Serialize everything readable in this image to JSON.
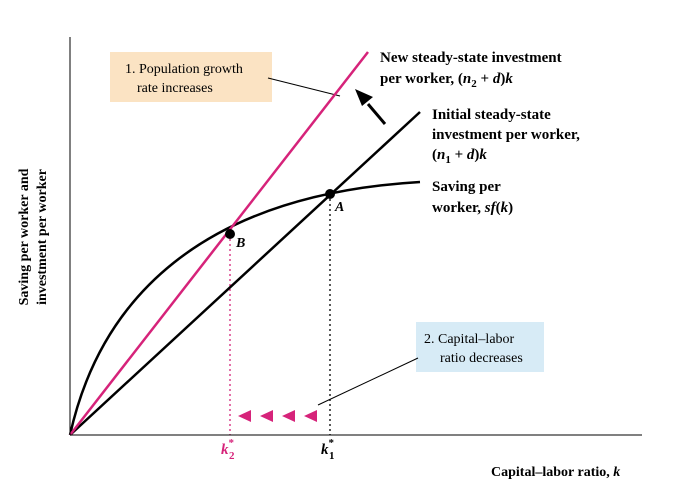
{
  "axes": {
    "y_label_line1": "Saving per worker and",
    "y_label_line2": "investment per worker",
    "x_label": "Capital–labor ratio, ",
    "x_label_var": "k"
  },
  "curves": {
    "new_investment": {
      "line1": "New steady-state investment",
      "line2_prefix": "per worker, (",
      "line2_n": "n",
      "line2_sub": "2",
      "line2_mid": " + ",
      "line2_d": "d",
      "line2_close": ")",
      "line2_k": "k",
      "color": "#d6237a"
    },
    "initial_investment": {
      "line1": "Initial steady-state",
      "line2": "investment per worker,",
      "line3_open": "(",
      "line3_n": "n",
      "line3_sub": "1",
      "line3_mid": " + ",
      "line3_d": "d",
      "line3_close": ")",
      "line3_k": "k",
      "color": "#000000"
    },
    "saving": {
      "line1": "Saving per",
      "line2_prefix": "worker, ",
      "line2_func": "sf",
      "line2_open": "(",
      "line2_k": "k",
      "line2_close": ")",
      "color": "#000000"
    }
  },
  "points": {
    "A": "A",
    "B": "B"
  },
  "ticks": {
    "k2_base": "k",
    "k2_sup": "*",
    "k2_sub": "2",
    "k1_base": "k",
    "k1_sup": "*",
    "k1_sub": "1"
  },
  "callouts": {
    "population": {
      "line1": "1. Population growth",
      "line2": "rate increases",
      "bg_color": "#fbe3c3"
    },
    "capital_labor": {
      "line1": "2. Capital–labor",
      "line2": "ratio decreases",
      "bg_color": "#d7ebf6"
    }
  },
  "accent_color": "#d6237a"
}
